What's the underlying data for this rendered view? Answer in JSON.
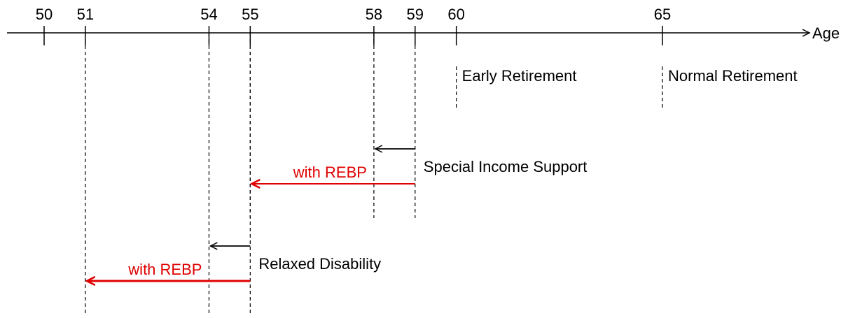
{
  "axis": {
    "label": "Age",
    "ticks": [
      50,
      51,
      54,
      55,
      58,
      59,
      60,
      65
    ]
  },
  "milestones": [
    {
      "label": "Early Retirement",
      "age": 60
    },
    {
      "label": "Normal Retirement",
      "age": 65
    }
  ],
  "programs": [
    {
      "label": "Special Income Support",
      "from": 59,
      "to": 58,
      "rebp_label": "with REBP",
      "rebp_to": 55
    },
    {
      "label": "Relaxed Disability",
      "from": 55,
      "to": 54,
      "rebp_label": "with REBP",
      "rebp_to": 51
    }
  ]
}
